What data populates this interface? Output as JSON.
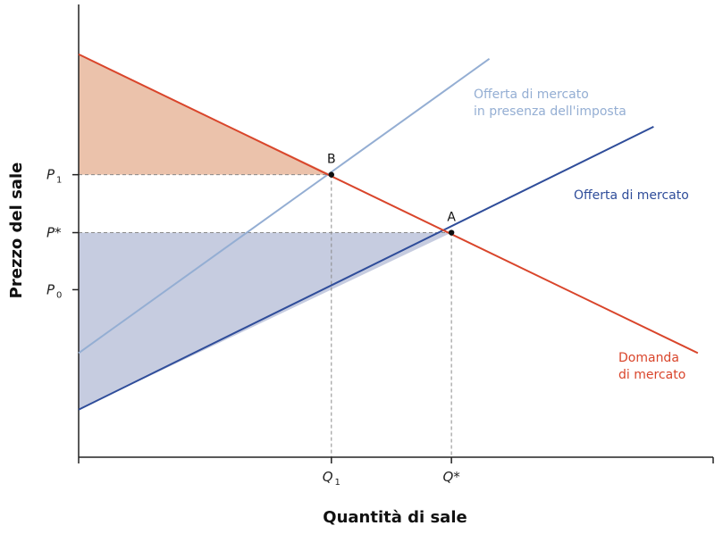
{
  "chart_data": {
    "type": "line",
    "title": "",
    "xlabel": "Quantità di sale",
    "ylabel": "Prezzo del sale",
    "xlim": [
      0,
      10
    ],
    "ylim": [
      0,
      10
    ],
    "colors": {
      "demand": "#d9452b",
      "supply": "#2f4d9a",
      "supply_tax": "#94aed3",
      "consumer_area": "#ebc2ab",
      "producer_area": "#c6cce0",
      "guide": "#8a8a8a",
      "axis": "#222222"
    },
    "series": [
      {
        "key": "demand",
        "name": "Domanda di mercato",
        "label_lines": [
          "Domanda",
          "di mercato"
        ],
        "x": [
          0,
          9.8
        ],
        "y": [
          8.9,
          2.3
        ]
      },
      {
        "key": "supply",
        "name": "Offerta di mercato",
        "label_lines": [
          "Offerta di mercato"
        ],
        "x": [
          0,
          9.1
        ],
        "y": [
          1.05,
          7.3
        ]
      },
      {
        "key": "supply_tax",
        "name": "Offerta di mercato in presenza dell'imposta",
        "label_lines": [
          "Offerta di mercato",
          "in presenza dell'imposta"
        ],
        "x": [
          0,
          6.5
        ],
        "y": [
          2.3,
          8.8
        ]
      }
    ],
    "areas": [
      {
        "key": "consumer_area",
        "points": [
          [
            0,
            8.9
          ],
          [
            0,
            6.24
          ],
          [
            4.0,
            6.24
          ]
        ]
      },
      {
        "key": "producer_area",
        "points": [
          [
            0,
            4.96
          ],
          [
            5.9,
            4.96
          ],
          [
            0,
            1.05
          ]
        ]
      }
    ],
    "points": [
      {
        "label": "A",
        "x": 5.9,
        "y": 4.96
      },
      {
        "label": "B",
        "x": 4.0,
        "y": 6.24
      }
    ],
    "y_ticks": [
      {
        "main": "P",
        "sub": "1",
        "value": 6.24
      },
      {
        "main": "P*",
        "sub": "",
        "value": 4.96
      },
      {
        "main": "P",
        "sub": "0",
        "value": 3.7
      }
    ],
    "x_ticks": [
      {
        "main": "Q",
        "sub": "1",
        "value": 4.0
      },
      {
        "main": "Q*",
        "sub": "",
        "value": 5.9
      }
    ]
  }
}
